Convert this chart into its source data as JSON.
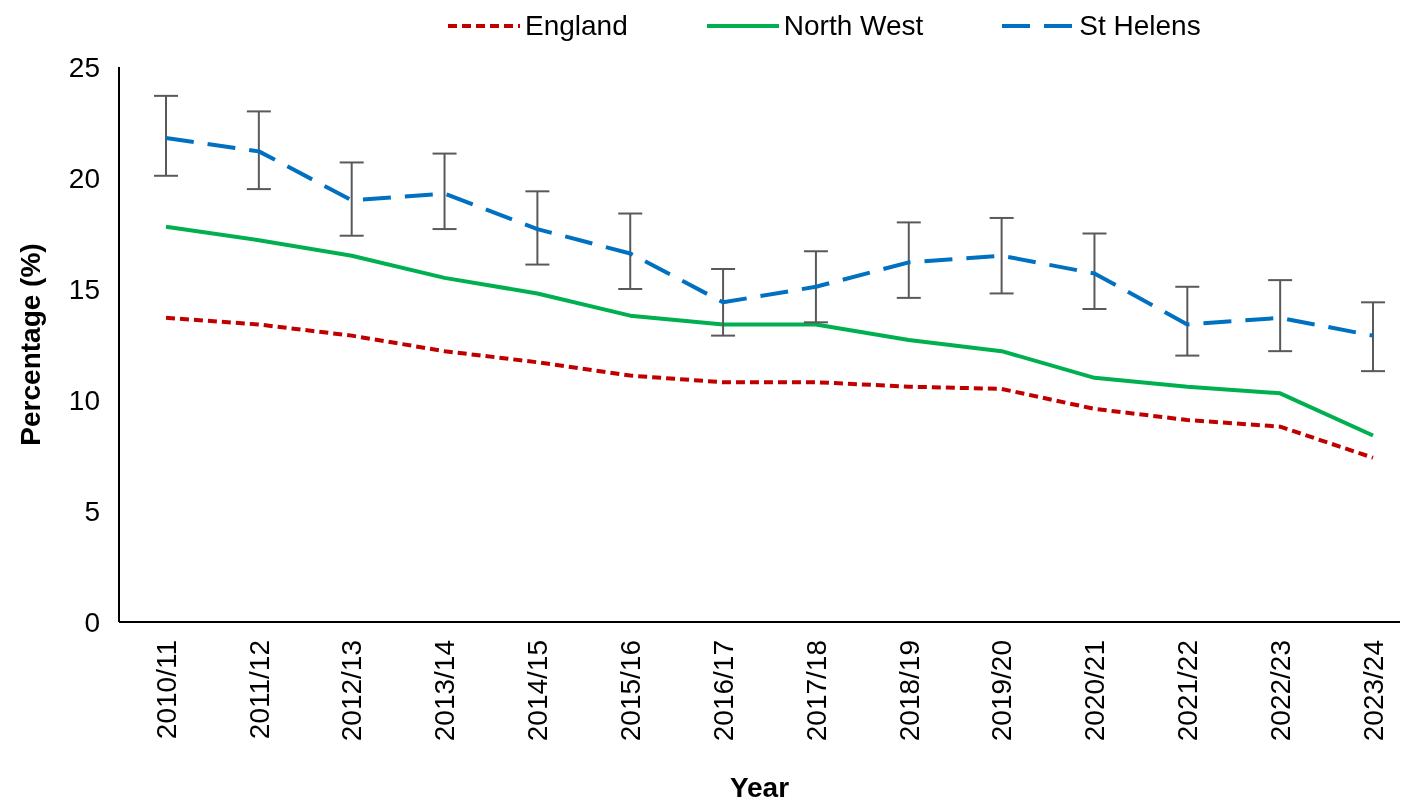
{
  "chart_data": {
    "type": "line",
    "xlabel": "Year",
    "ylabel": "Percentage (%)",
    "categories": [
      "2010/11",
      "2011/12",
      "2012/13",
      "2013/14",
      "2014/15",
      "2015/16",
      "2016/17",
      "2017/18",
      "2018/19",
      "2019/20",
      "2020/21",
      "2021/22",
      "2022/23",
      "2023/24"
    ],
    "series": [
      {
        "name": "England",
        "color": "#c00000",
        "line_style": "dotted",
        "values": [
          13.7,
          13.4,
          12.9,
          12.2,
          11.7,
          11.1,
          10.8,
          10.8,
          10.6,
          10.5,
          9.6,
          9.1,
          8.8,
          7.4
        ]
      },
      {
        "name": "North West",
        "color": "#00b050",
        "line_style": "solid",
        "values": [
          17.8,
          17.2,
          16.5,
          15.5,
          14.8,
          13.8,
          13.4,
          13.4,
          12.7,
          12.2,
          11.0,
          10.6,
          10.3,
          8.4
        ]
      },
      {
        "name": "St Helens",
        "color": "#0070c0",
        "line_style": "dashed",
        "values": [
          21.8,
          21.2,
          19.0,
          19.3,
          17.7,
          16.6,
          14.4,
          15.1,
          16.2,
          16.5,
          15.7,
          13.4,
          13.7,
          12.9
        ],
        "errors": [
          [
            20.1,
            23.7
          ],
          [
            19.5,
            23.0
          ],
          [
            17.4,
            20.7
          ],
          [
            17.7,
            21.1
          ],
          [
            16.1,
            19.4
          ],
          [
            15.0,
            18.4
          ],
          [
            12.9,
            15.9
          ],
          [
            13.5,
            16.7
          ],
          [
            14.6,
            18.0
          ],
          [
            14.8,
            18.2
          ],
          [
            14.1,
            17.5
          ],
          [
            12.0,
            15.1
          ],
          [
            12.2,
            15.4
          ],
          [
            11.3,
            14.4
          ]
        ]
      }
    ],
    "ylim": [
      0,
      25
    ],
    "yticks": [
      0,
      5,
      10,
      15,
      20,
      25
    ],
    "legend": "top",
    "marker": "none"
  }
}
